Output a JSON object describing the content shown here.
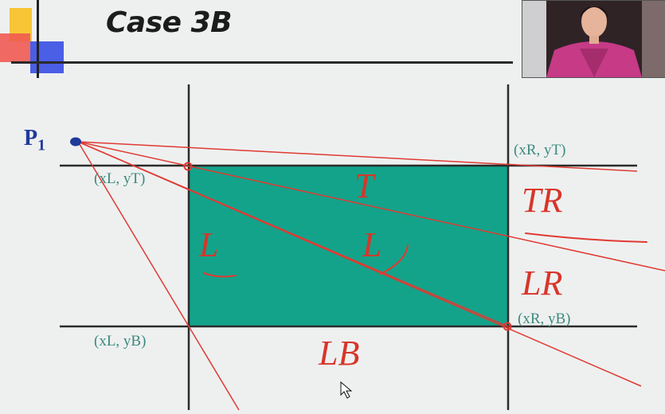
{
  "slide": {
    "title": "Case 3B",
    "point_label": "P",
    "point_subscript": "1",
    "corners": {
      "top_left": "(xL, yT)",
      "top_right": "(xR, yT)",
      "bottom_left": "(xL, yB)",
      "bottom_right": "(xR, yB)"
    },
    "regions": {
      "top": "T",
      "left_inside": "L",
      "left_center": "L",
      "top_right": "TR",
      "left_right": "LR",
      "left_bottom": "LB"
    }
  },
  "colors": {
    "clip_rect": "#13a38a",
    "rays": "#e03a32",
    "grid_lines": "#2b2b2b",
    "corner_labels": "#3d8a7c",
    "region_labels": "#d8352a",
    "point": "#1f3a9a"
  }
}
